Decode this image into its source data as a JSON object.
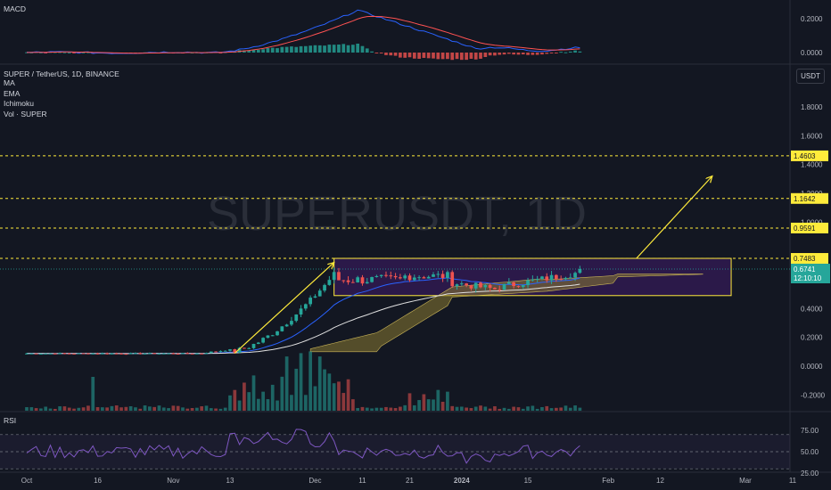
{
  "watermark": "SUPERUSDT, 1D",
  "watermark_small": "SUPER / TetherUS",
  "header": {
    "symbol_line": "SUPER / TetherUS, 1D, BINANCE",
    "indicators": [
      "MA",
      "EMA",
      "Ichimoku",
      "Vol · SUPER"
    ],
    "currency_button": "USDT"
  },
  "macd_label": "MACD",
  "rsi_label": "RSI",
  "price_label": {
    "value": "0.6741",
    "timer": "12:10:10",
    "color": "#26a69a"
  },
  "colors": {
    "background": "#131722",
    "up": "#26a69a",
    "down": "#ef5350",
    "level_line": "#ffeb3b",
    "box_fill": "#4a1c7a",
    "cloud": "#8a7a32",
    "ma": "#e0e0e0",
    "ema": "#2962ff",
    "macd_line": "#2962ff",
    "signal_line": "#ff5252",
    "rsi_line": "#7e57c2"
  },
  "chart_data": [
    {
      "type": "candlestick",
      "title": "SUPER / TetherUS, 1D, BINANCE",
      "x_tick_labels": [
        "Oct",
        "16",
        "Nov",
        "13",
        "Dec",
        "11",
        "21",
        "2024",
        "15",
        "Feb",
        "12",
        "Mar",
        "11"
      ],
      "y_tick_labels": [
        "1.8000",
        "1.6000",
        "1.4000",
        "1.2000",
        "1.0000",
        "0.4000",
        "0.2000",
        "0.0000",
        "-0.2000"
      ],
      "ylim": [
        -0.3,
        2.0
      ],
      "horizontal_levels": [
        1.4603,
        1.1642,
        0.9591,
        0.7483
      ],
      "last_price": 0.6741,
      "range_box": {
        "low": 0.49,
        "high": 0.7483
      },
      "arrows": [
        {
          "from": [
            0.09,
            "Nov 13"
          ],
          "to": [
            0.72,
            "Dec 5"
          ]
        },
        {
          "from": [
            0.75,
            "Jan 27"
          ],
          "to": [
            1.32,
            "Feb 19"
          ]
        }
      ]
    },
    {
      "type": "bar",
      "title": "MACD",
      "y_tick_labels": [
        "0.2000",
        "0.0000"
      ],
      "ylim": [
        -0.05,
        0.28
      ]
    },
    {
      "type": "line",
      "title": "RSI",
      "y_tick_labels": [
        "75.00",
        "50.00",
        "25.00"
      ],
      "ylim": [
        15,
        95
      ],
      "levels": [
        70,
        50,
        30
      ]
    }
  ]
}
